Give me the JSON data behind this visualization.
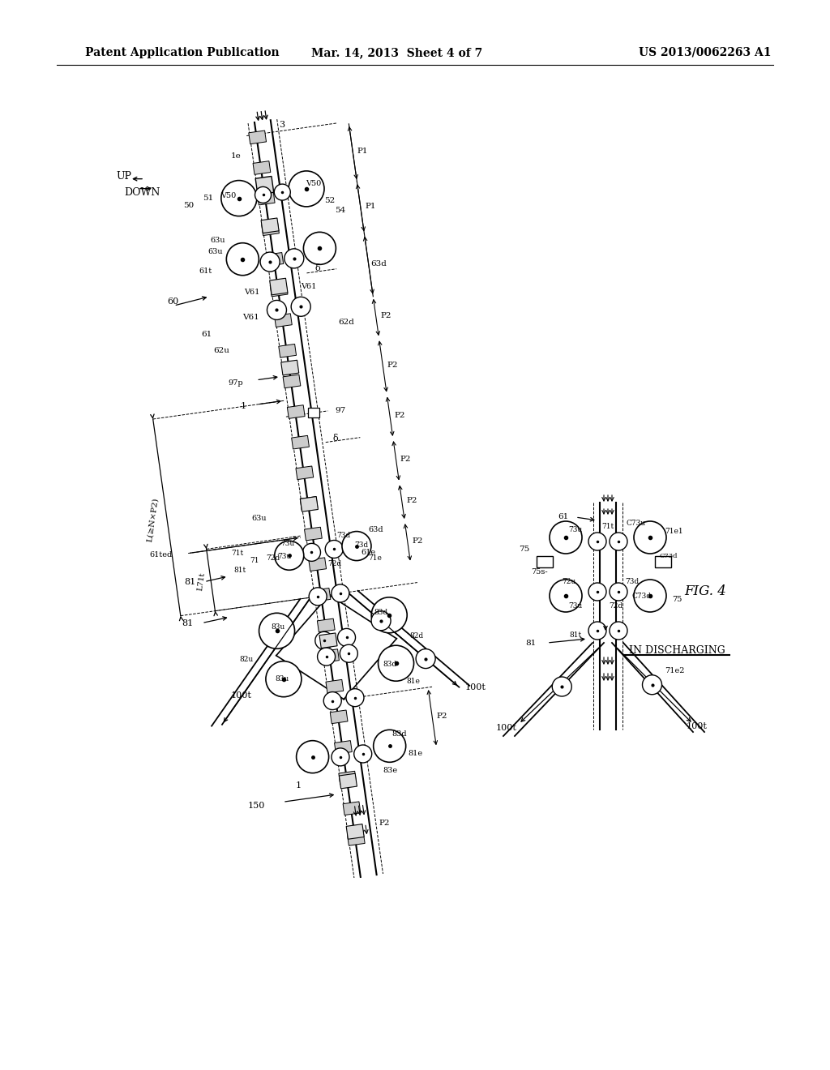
{
  "bg_color": "#ffffff",
  "header_left": "Patent Application Publication",
  "header_mid": "Mar. 14, 2013  Sheet 4 of 7",
  "header_right": "US 2013/0062263 A1",
  "fig_label": "FIG. 4",
  "fig_label2": "IN DISCHARGING"
}
